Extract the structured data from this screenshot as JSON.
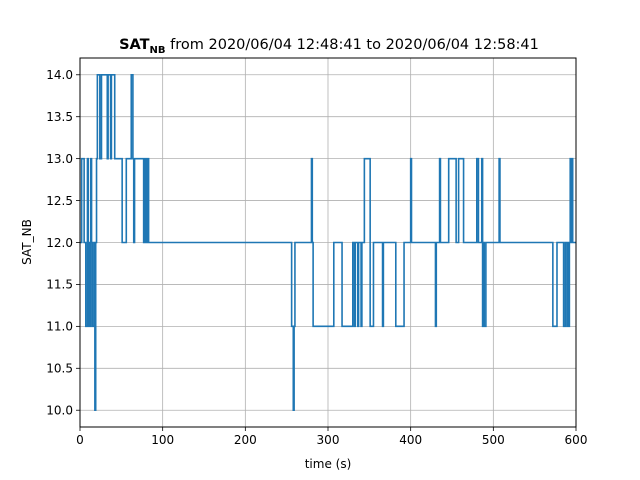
{
  "chart_data": {
    "type": "line",
    "title": {
      "bold_main": "SAT",
      "bold_sub": "NB",
      "rest": " from 2020/06/04 12:48:41 to 2020/06/04 12:58:41"
    },
    "xlabel": "time (s)",
    "ylabel": "SAT_NB",
    "xlim": [
      0,
      600
    ],
    "ylim": [
      9.8,
      14.2
    ],
    "xticks": [
      0,
      100,
      200,
      300,
      400,
      500,
      600
    ],
    "yticks": [
      10.0,
      10.5,
      11.0,
      11.5,
      12.0,
      12.5,
      13.0,
      13.5,
      14.0
    ],
    "grid": true,
    "line_color": "#1f77b4",
    "series": [
      {
        "step": "post",
        "x": [
          0,
          2,
          5,
          7,
          9,
          10,
          11,
          12,
          13,
          14,
          15,
          17,
          18,
          19,
          20,
          21,
          24,
          26,
          33,
          34,
          37,
          38,
          42,
          51,
          56,
          62,
          64,
          65,
          66,
          77,
          78,
          79,
          80,
          81,
          82,
          83,
          85,
          256,
          258,
          259,
          260,
          262,
          280,
          281,
          282,
          307,
          313,
          317,
          330,
          332,
          333,
          336,
          337,
          340,
          341,
          344,
          351,
          355,
          364,
          366,
          367,
          382,
          392,
          399,
          400,
          401,
          403,
          430,
          431,
          435,
          436,
          437,
          446,
          455,
          458,
          464,
          475,
          480,
          482,
          483,
          486,
          487,
          488,
          489,
          491,
          506,
          507,
          508,
          572,
          577,
          585,
          587,
          589,
          590,
          591,
          592,
          593,
          594,
          595,
          596,
          598,
          600
        ],
        "y": [
          12,
          13,
          12,
          11,
          13,
          11,
          12,
          11,
          13,
          12,
          11,
          12,
          10,
          12,
          13,
          14,
          13,
          14,
          13,
          14,
          13,
          14,
          13,
          12,
          13,
          14,
          13,
          12,
          13,
          12,
          13,
          12,
          13,
          12,
          13,
          12,
          12,
          11,
          10,
          11,
          12,
          12,
          13,
          12,
          11,
          12,
          12,
          11,
          12,
          11,
          12,
          11,
          12,
          11,
          12,
          13,
          11,
          12,
          12,
          11,
          12,
          11,
          12,
          12,
          13,
          12,
          12,
          11,
          12,
          13,
          12,
          12,
          13,
          12,
          13,
          12,
          12,
          13,
          12,
          12,
          13,
          11,
          12,
          11,
          12,
          12,
          13,
          12,
          11,
          12,
          11,
          12,
          11,
          12,
          11,
          12,
          13,
          12,
          13,
          12,
          12,
          12
        ]
      }
    ]
  }
}
